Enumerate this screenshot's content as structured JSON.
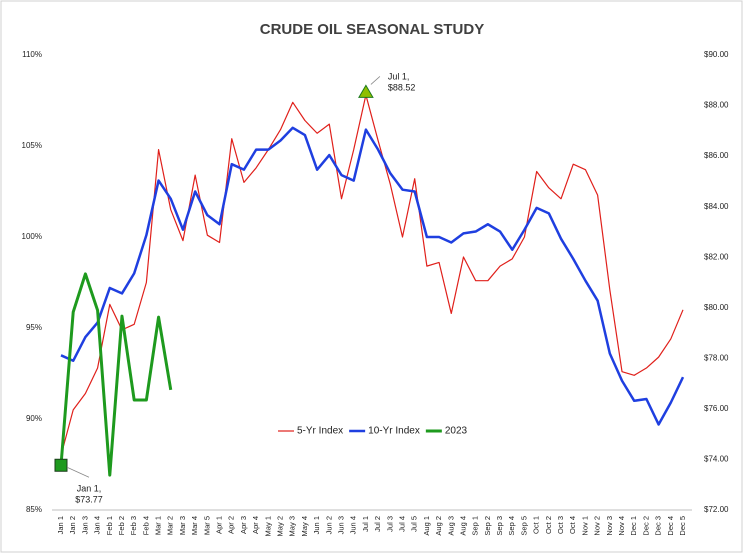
{
  "chart_data": {
    "type": "line",
    "title": "CRUDE OIL SEASONAL STUDY",
    "categories": [
      "Jan 1",
      "Jan 2",
      "Jan 3",
      "Jan 4",
      "Feb 1",
      "Feb 2",
      "Feb 3",
      "Feb 4",
      "Mar 1",
      "Mar 2",
      "Mar 3",
      "Mar 4",
      "Mar 5",
      "Apr 1",
      "Apr 2",
      "Apr 3",
      "Apr 4",
      "May 1",
      "May 2",
      "May 3",
      "May 4",
      "Jun 1",
      "Jun 2",
      "Jun 3",
      "Jun 4",
      "Jul 1",
      "Jul 2",
      "Jul 3",
      "Jul 4",
      "Jul 5",
      "Aug 1",
      "Aug 2",
      "Aug 3",
      "Aug 4",
      "Sep 1",
      "Sep 2",
      "Sep 3",
      "Sep 4",
      "Sep 5",
      "Oct 1",
      "Oct 2",
      "Oct 3",
      "Oct 4",
      "Nov 1",
      "Nov 2",
      "Nov 3",
      "Nov 4",
      "Dec 1",
      "Dec 2",
      "Dec 3",
      "Dec 4",
      "Dec 5"
    ],
    "series": [
      {
        "name": "5-Yr Index",
        "color": "#e0201b",
        "axis": "y",
        "values": [
          88.0,
          90.5,
          91.4,
          92.8,
          96.3,
          94.9,
          95.2,
          97.5,
          104.8,
          101.5,
          99.8,
          103.4,
          100.1,
          99.7,
          105.4,
          103.0,
          103.8,
          104.8,
          105.9,
          107.4,
          106.4,
          105.7,
          106.2,
          102.1,
          104.8,
          107.8,
          105.3,
          102.9,
          100.0,
          103.2,
          98.4,
          98.6,
          95.8,
          98.9,
          97.6,
          97.6,
          98.4,
          98.8,
          100.0,
          103.6,
          102.7,
          102.1,
          104.0,
          103.7,
          102.3,
          97.1,
          92.6,
          92.4,
          92.8,
          93.4,
          94.4,
          96.0
        ]
      },
      {
        "name": "10-Yr Index",
        "color": "#1f3fe0",
        "axis": "y",
        "values": [
          93.5,
          93.2,
          94.5,
          95.3,
          97.2,
          96.9,
          98.0,
          100.1,
          103.1,
          102.1,
          100.4,
          102.5,
          101.2,
          100.7,
          104.0,
          103.7,
          104.8,
          104.8,
          105.3,
          106.0,
          105.6,
          103.7,
          104.5,
          103.4,
          103.1,
          105.9,
          104.8,
          103.5,
          102.6,
          102.5,
          100.0,
          100.0,
          99.7,
          100.2,
          100.3,
          100.7,
          100.3,
          99.3,
          100.4,
          101.6,
          101.3,
          99.9,
          98.8,
          97.6,
          96.5,
          93.6,
          92.1,
          91.0,
          91.1,
          89.7,
          90.9,
          92.3
        ]
      },
      {
        "name": "2023",
        "color": "#1e9a1e",
        "axis": "y2",
        "values": [
          73.77,
          79.83,
          81.34,
          79.9,
          73.38,
          79.67,
          76.35,
          76.35,
          79.63,
          76.75,
          null,
          null,
          null,
          null,
          null,
          null,
          null,
          null,
          null,
          null,
          null,
          null,
          null,
          null,
          null,
          null,
          null,
          null,
          null,
          null,
          null,
          null,
          null,
          null,
          null,
          null,
          null,
          null,
          null,
          null,
          null,
          null,
          null,
          null,
          null,
          null,
          null,
          null,
          null,
          null,
          null,
          null
        ]
      }
    ],
    "ylim": [
      85,
      110
    ],
    "yticks": [
      {
        "value": 85,
        "label": "85%"
      },
      {
        "value": 90,
        "label": "90%"
      },
      {
        "value": 95,
        "label": "95%"
      },
      {
        "value": 100,
        "label": "100%"
      },
      {
        "value": 105,
        "label": "105%"
      },
      {
        "value": 110,
        "label": "110%"
      }
    ],
    "y2lim": [
      72,
      90
    ],
    "y2ticks": [
      {
        "value": 72,
        "label": "$72.00"
      },
      {
        "value": 74,
        "label": "$74.00"
      },
      {
        "value": 76,
        "label": "$76.00"
      },
      {
        "value": 78,
        "label": "$78.00"
      },
      {
        "value": 80,
        "label": "$80.00"
      },
      {
        "value": 82,
        "label": "$82.00"
      },
      {
        "value": 84,
        "label": "$84.00"
      },
      {
        "value": 86,
        "label": "$86.00"
      },
      {
        "value": 88,
        "label": "$88.00"
      },
      {
        "value": 90,
        "label": "$90.00"
      }
    ],
    "annotations": [
      {
        "text": [
          "Jan 1,",
          "$73.77"
        ],
        "x": "Jan 1",
        "y": 73.77,
        "marker": "square",
        "color": "#1e9a1e"
      },
      {
        "text": [
          "Jul 1,",
          "$88.52"
        ],
        "x": "Jul 1",
        "y": 88.52,
        "marker": "triangle",
        "color": "#8fbf00"
      }
    ],
    "legend": "bottom",
    "grid": false
  }
}
